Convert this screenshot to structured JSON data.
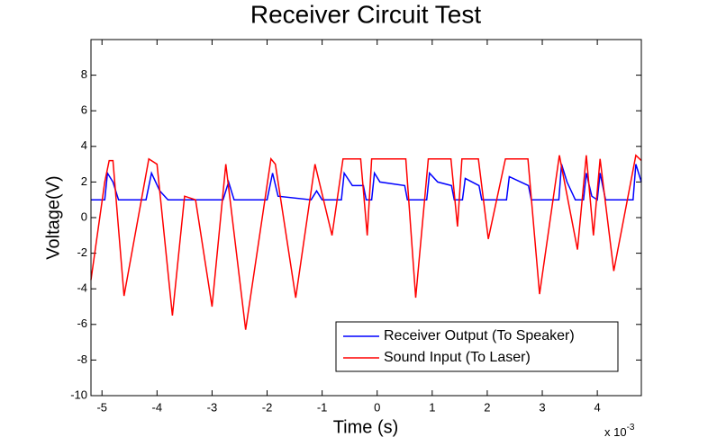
{
  "chart_data": {
    "type": "line",
    "title": "Receiver Circuit Test",
    "xlabel": "Time (s)",
    "ylabel": "Voltage(V)",
    "x_multiplier": {
      "base": "x 10",
      "exponent": "-3"
    },
    "xlim": [
      -5.2,
      4.8
    ],
    "ylim": [
      -10,
      10
    ],
    "xticks": [
      -5,
      -4,
      -3,
      -2,
      -1,
      0,
      1,
      2,
      3,
      4
    ],
    "yticks": [
      -10,
      -8,
      -6,
      -4,
      -2,
      0,
      2,
      4,
      6,
      8
    ],
    "legend": "lower right",
    "series": [
      {
        "name": "Receiver Output (To Speaker)",
        "color": "#0000ff",
        "x": [
          -5.2,
          -4.95,
          -4.9,
          -4.8,
          -4.7,
          -4.2,
          -4.1,
          -3.95,
          -3.8,
          -2.8,
          -2.7,
          -2.6,
          -2.0,
          -1.9,
          -1.8,
          -1.2,
          -1.1,
          -1.0,
          -0.65,
          -0.6,
          -0.45,
          -0.25,
          -0.2,
          -0.1,
          -0.05,
          0.05,
          0.5,
          0.55,
          0.9,
          0.95,
          1.1,
          1.35,
          1.4,
          1.55,
          1.6,
          1.85,
          1.9,
          2.35,
          2.4,
          2.75,
          2.8,
          3.3,
          3.35,
          3.45,
          3.6,
          3.75,
          3.8,
          3.9,
          4.0,
          4.05,
          4.15,
          4.65,
          4.7,
          4.8
        ],
        "values": [
          1.0,
          1.0,
          2.5,
          2.0,
          1.0,
          1.0,
          2.5,
          1.5,
          1.0,
          1.0,
          2.0,
          1.0,
          1.0,
          2.5,
          1.2,
          1.0,
          1.5,
          1.0,
          1.0,
          2.5,
          1.8,
          1.8,
          1.0,
          1.0,
          2.5,
          2.0,
          1.8,
          1.0,
          1.0,
          2.5,
          2.0,
          1.8,
          1.0,
          1.0,
          2.2,
          1.8,
          1.0,
          1.0,
          2.3,
          1.8,
          1.0,
          1.0,
          3.0,
          2.0,
          1.0,
          1.0,
          2.5,
          1.2,
          1.0,
          2.5,
          1.0,
          1.0,
          3.0,
          2.0
        ]
      },
      {
        "name": "Sound Input (To Laser)",
        "color": "#ff0000",
        "x": [
          -5.2,
          -4.95,
          -4.87,
          -4.8,
          -4.6,
          -4.15,
          -4.0,
          -3.72,
          -3.5,
          -3.3,
          -3.0,
          -2.75,
          -2.39,
          -1.93,
          -1.85,
          -1.48,
          -1.13,
          -0.82,
          -0.62,
          -0.3,
          -0.18,
          -0.1,
          0.52,
          0.7,
          0.93,
          1.34,
          1.46,
          1.54,
          1.84,
          2.02,
          2.33,
          2.74,
          2.95,
          3.31,
          3.64,
          3.8,
          3.93,
          4.05,
          4.3,
          4.7,
          4.8
        ],
        "values": [
          -3.5,
          2.0,
          3.2,
          3.2,
          -4.4,
          3.3,
          3.0,
          -5.5,
          1.2,
          1.0,
          -5.0,
          3.0,
          -6.3,
          3.3,
          3.0,
          -4.5,
          3.0,
          -1.0,
          3.3,
          3.3,
          -1.0,
          3.3,
          3.3,
          -4.5,
          3.3,
          3.3,
          -0.5,
          3.3,
          3.3,
          -1.2,
          3.3,
          3.3,
          -4.3,
          3.5,
          -1.8,
          3.5,
          -1.0,
          3.3,
          -3.0,
          3.5,
          3.2
        ]
      }
    ]
  }
}
